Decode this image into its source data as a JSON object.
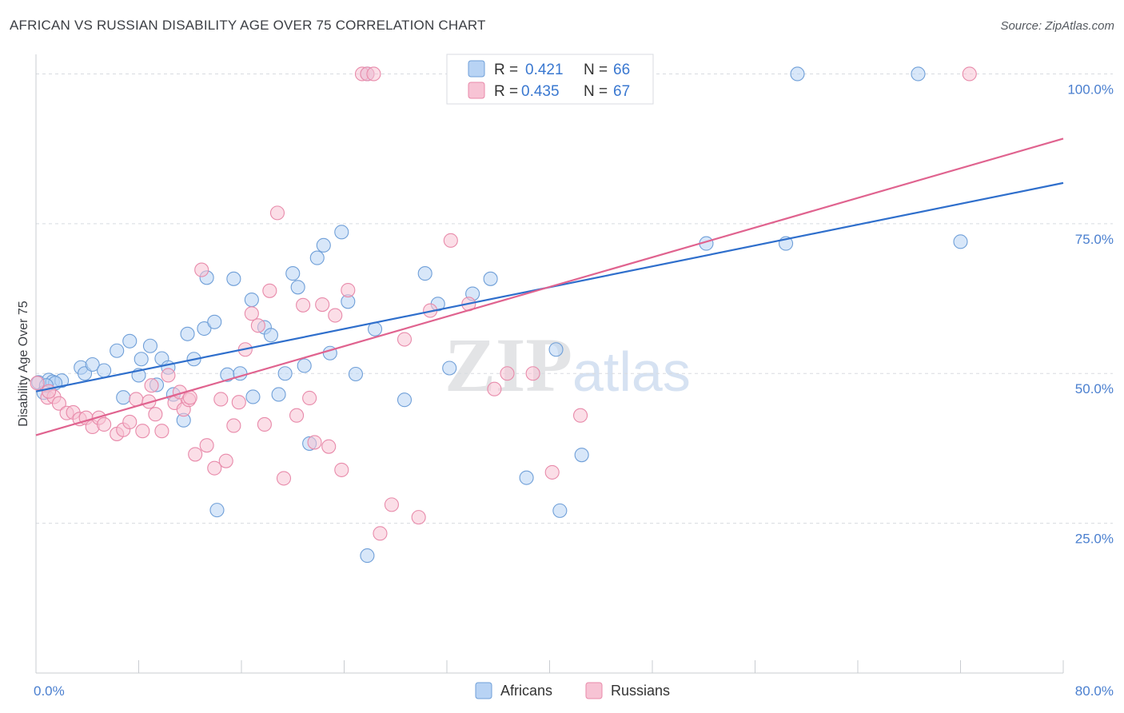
{
  "title": "AFRICAN VS RUSSIAN DISABILITY AGE OVER 75 CORRELATION CHART",
  "source": "Source: ZipAtlas.com",
  "watermark": {
    "zip": "ZIP",
    "atlas": "atlas"
  },
  "colors": {
    "blue_fill": "#b8d3f4",
    "blue_stroke": "#6f9fd8",
    "blue_line": "#2f6fcc",
    "pink_fill": "#f7c3d4",
    "pink_stroke": "#e88aaa",
    "pink_line": "#e0638f",
    "grid": "#d8dbe0",
    "axis_label": "#4a7fcf"
  },
  "legend": {
    "rows": [
      {
        "r_label": "R =",
        "r_value": "0.421",
        "n_label": "N =",
        "n_value": "66"
      },
      {
        "r_label": "R =",
        "r_value": "0.435",
        "n_label": "N =",
        "n_value": "67"
      }
    ]
  },
  "chart_data": {
    "type": "scatter",
    "title": "AFRICAN VS RUSSIAN DISABILITY AGE OVER 75 CORRELATION CHART",
    "xlabel": "",
    "ylabel": "Disability Age Over 75",
    "xlim": [
      0,
      80
    ],
    "ylim": [
      0,
      105
    ],
    "x_tick_labels": [
      "0.0%",
      "80.0%"
    ],
    "y_ticks": [
      25,
      50,
      75,
      100
    ],
    "y_tick_labels": [
      "25.0%",
      "50.0%",
      "75.0%",
      "100.0%"
    ],
    "grid": true,
    "legend_position": "top-center",
    "series": [
      {
        "name": "Africans",
        "color": "#6f9fd8",
        "r": 0.421,
        "n": 66,
        "trend": {
          "x": [
            0,
            80
          ],
          "y": [
            47.0,
            81.8
          ]
        },
        "points": [
          [
            0.2,
            48.5
          ],
          [
            0.6,
            46.8
          ],
          [
            1.0,
            48.9
          ],
          [
            1.3,
            48.6
          ],
          [
            2.0,
            48.8
          ],
          [
            1.5,
            48.4
          ],
          [
            3.5,
            51.0
          ],
          [
            3.8,
            50.0
          ],
          [
            4.4,
            51.5
          ],
          [
            5.3,
            50.5
          ],
          [
            6.3,
            53.8
          ],
          [
            6.8,
            46.0
          ],
          [
            7.3,
            55.4
          ],
          [
            8.0,
            49.7
          ],
          [
            8.2,
            52.4
          ],
          [
            8.9,
            54.6
          ],
          [
            9.4,
            48.1
          ],
          [
            9.8,
            52.5
          ],
          [
            10.3,
            51.0
          ],
          [
            10.7,
            46.5
          ],
          [
            11.5,
            42.2
          ],
          [
            11.8,
            56.6
          ],
          [
            12.3,
            52.4
          ],
          [
            13.1,
            57.5
          ],
          [
            13.3,
            66.0
          ],
          [
            13.9,
            58.6
          ],
          [
            14.1,
            27.2
          ],
          [
            14.9,
            49.8
          ],
          [
            15.4,
            65.8
          ],
          [
            15.9,
            50.0
          ],
          [
            16.8,
            62.3
          ],
          [
            16.9,
            46.1
          ],
          [
            17.8,
            57.7
          ],
          [
            18.3,
            56.4
          ],
          [
            18.9,
            46.5
          ],
          [
            19.4,
            50.0
          ],
          [
            20.0,
            66.7
          ],
          [
            20.4,
            64.4
          ],
          [
            20.9,
            51.3
          ],
          [
            21.3,
            38.3
          ],
          [
            21.9,
            69.3
          ],
          [
            22.4,
            71.4
          ],
          [
            22.9,
            53.4
          ],
          [
            23.8,
            73.6
          ],
          [
            24.3,
            62.0
          ],
          [
            24.9,
            49.9
          ],
          [
            25.8,
            19.6
          ],
          [
            26.4,
            57.4
          ],
          [
            28.7,
            45.6
          ],
          [
            30.3,
            66.7
          ],
          [
            31.3,
            61.6
          ],
          [
            32.2,
            50.9
          ],
          [
            34.0,
            63.3
          ],
          [
            35.4,
            65.8
          ],
          [
            38.2,
            32.6
          ],
          [
            40.5,
            54.0
          ],
          [
            40.8,
            27.1
          ],
          [
            42.5,
            36.4
          ],
          [
            52.2,
            71.7
          ],
          [
            58.4,
            71.7
          ],
          [
            72.0,
            72.0
          ],
          [
            25.8,
            100.0
          ],
          [
            59.3,
            100.0
          ],
          [
            68.7,
            100.0
          ],
          [
            33.0,
            100.0
          ],
          [
            0.8,
            48.0
          ]
        ]
      },
      {
        "name": "Russians",
        "color": "#e88aaa",
        "r": 0.435,
        "n": 67,
        "trend": {
          "x": [
            0,
            80
          ],
          "y": [
            39.7,
            89.2
          ]
        },
        "points": [
          [
            0.1,
            48.4
          ],
          [
            0.9,
            46.0
          ],
          [
            1.4,
            46.1
          ],
          [
            1.8,
            45.0
          ],
          [
            2.4,
            43.4
          ],
          [
            2.9,
            43.5
          ],
          [
            3.4,
            42.4
          ],
          [
            3.9,
            42.6
          ],
          [
            4.4,
            41.1
          ],
          [
            4.9,
            42.6
          ],
          [
            5.3,
            41.5
          ],
          [
            6.3,
            39.9
          ],
          [
            6.8,
            40.6
          ],
          [
            7.3,
            41.9
          ],
          [
            7.8,
            45.7
          ],
          [
            8.3,
            40.4
          ],
          [
            8.8,
            45.3
          ],
          [
            9.3,
            43.2
          ],
          [
            9.8,
            40.4
          ],
          [
            10.3,
            49.7
          ],
          [
            10.8,
            45.1
          ],
          [
            11.2,
            46.9
          ],
          [
            11.5,
            44.0
          ],
          [
            11.9,
            45.6
          ],
          [
            12.4,
            36.5
          ],
          [
            12.9,
            67.3
          ],
          [
            13.3,
            38.0
          ],
          [
            13.9,
            34.2
          ],
          [
            14.4,
            45.7
          ],
          [
            14.8,
            35.4
          ],
          [
            15.4,
            41.3
          ],
          [
            15.8,
            45.2
          ],
          [
            16.3,
            54.0
          ],
          [
            16.8,
            60.0
          ],
          [
            17.3,
            58.0
          ],
          [
            17.8,
            41.5
          ],
          [
            18.2,
            63.8
          ],
          [
            18.8,
            76.8
          ],
          [
            19.3,
            32.5
          ],
          [
            20.3,
            43.0
          ],
          [
            20.8,
            61.4
          ],
          [
            21.3,
            45.9
          ],
          [
            21.7,
            38.5
          ],
          [
            22.3,
            61.5
          ],
          [
            22.8,
            37.8
          ],
          [
            23.3,
            59.7
          ],
          [
            23.8,
            33.9
          ],
          [
            24.3,
            63.9
          ],
          [
            25.4,
            100.0
          ],
          [
            25.8,
            100.0
          ],
          [
            26.3,
            100.0
          ],
          [
            26.8,
            23.3
          ],
          [
            27.7,
            28.1
          ],
          [
            28.7,
            55.7
          ],
          [
            29.8,
            26.0
          ],
          [
            30.7,
            60.5
          ],
          [
            32.3,
            72.2
          ],
          [
            33.7,
            61.6
          ],
          [
            35.7,
            47.4
          ],
          [
            36.7,
            50.0
          ],
          [
            38.7,
            50.0
          ],
          [
            40.2,
            33.5
          ],
          [
            42.4,
            43.0
          ],
          [
            72.7,
            100.0
          ],
          [
            1.0,
            47.0
          ],
          [
            12.0,
            46.0
          ],
          [
            9.0,
            48.0
          ]
        ]
      }
    ]
  }
}
